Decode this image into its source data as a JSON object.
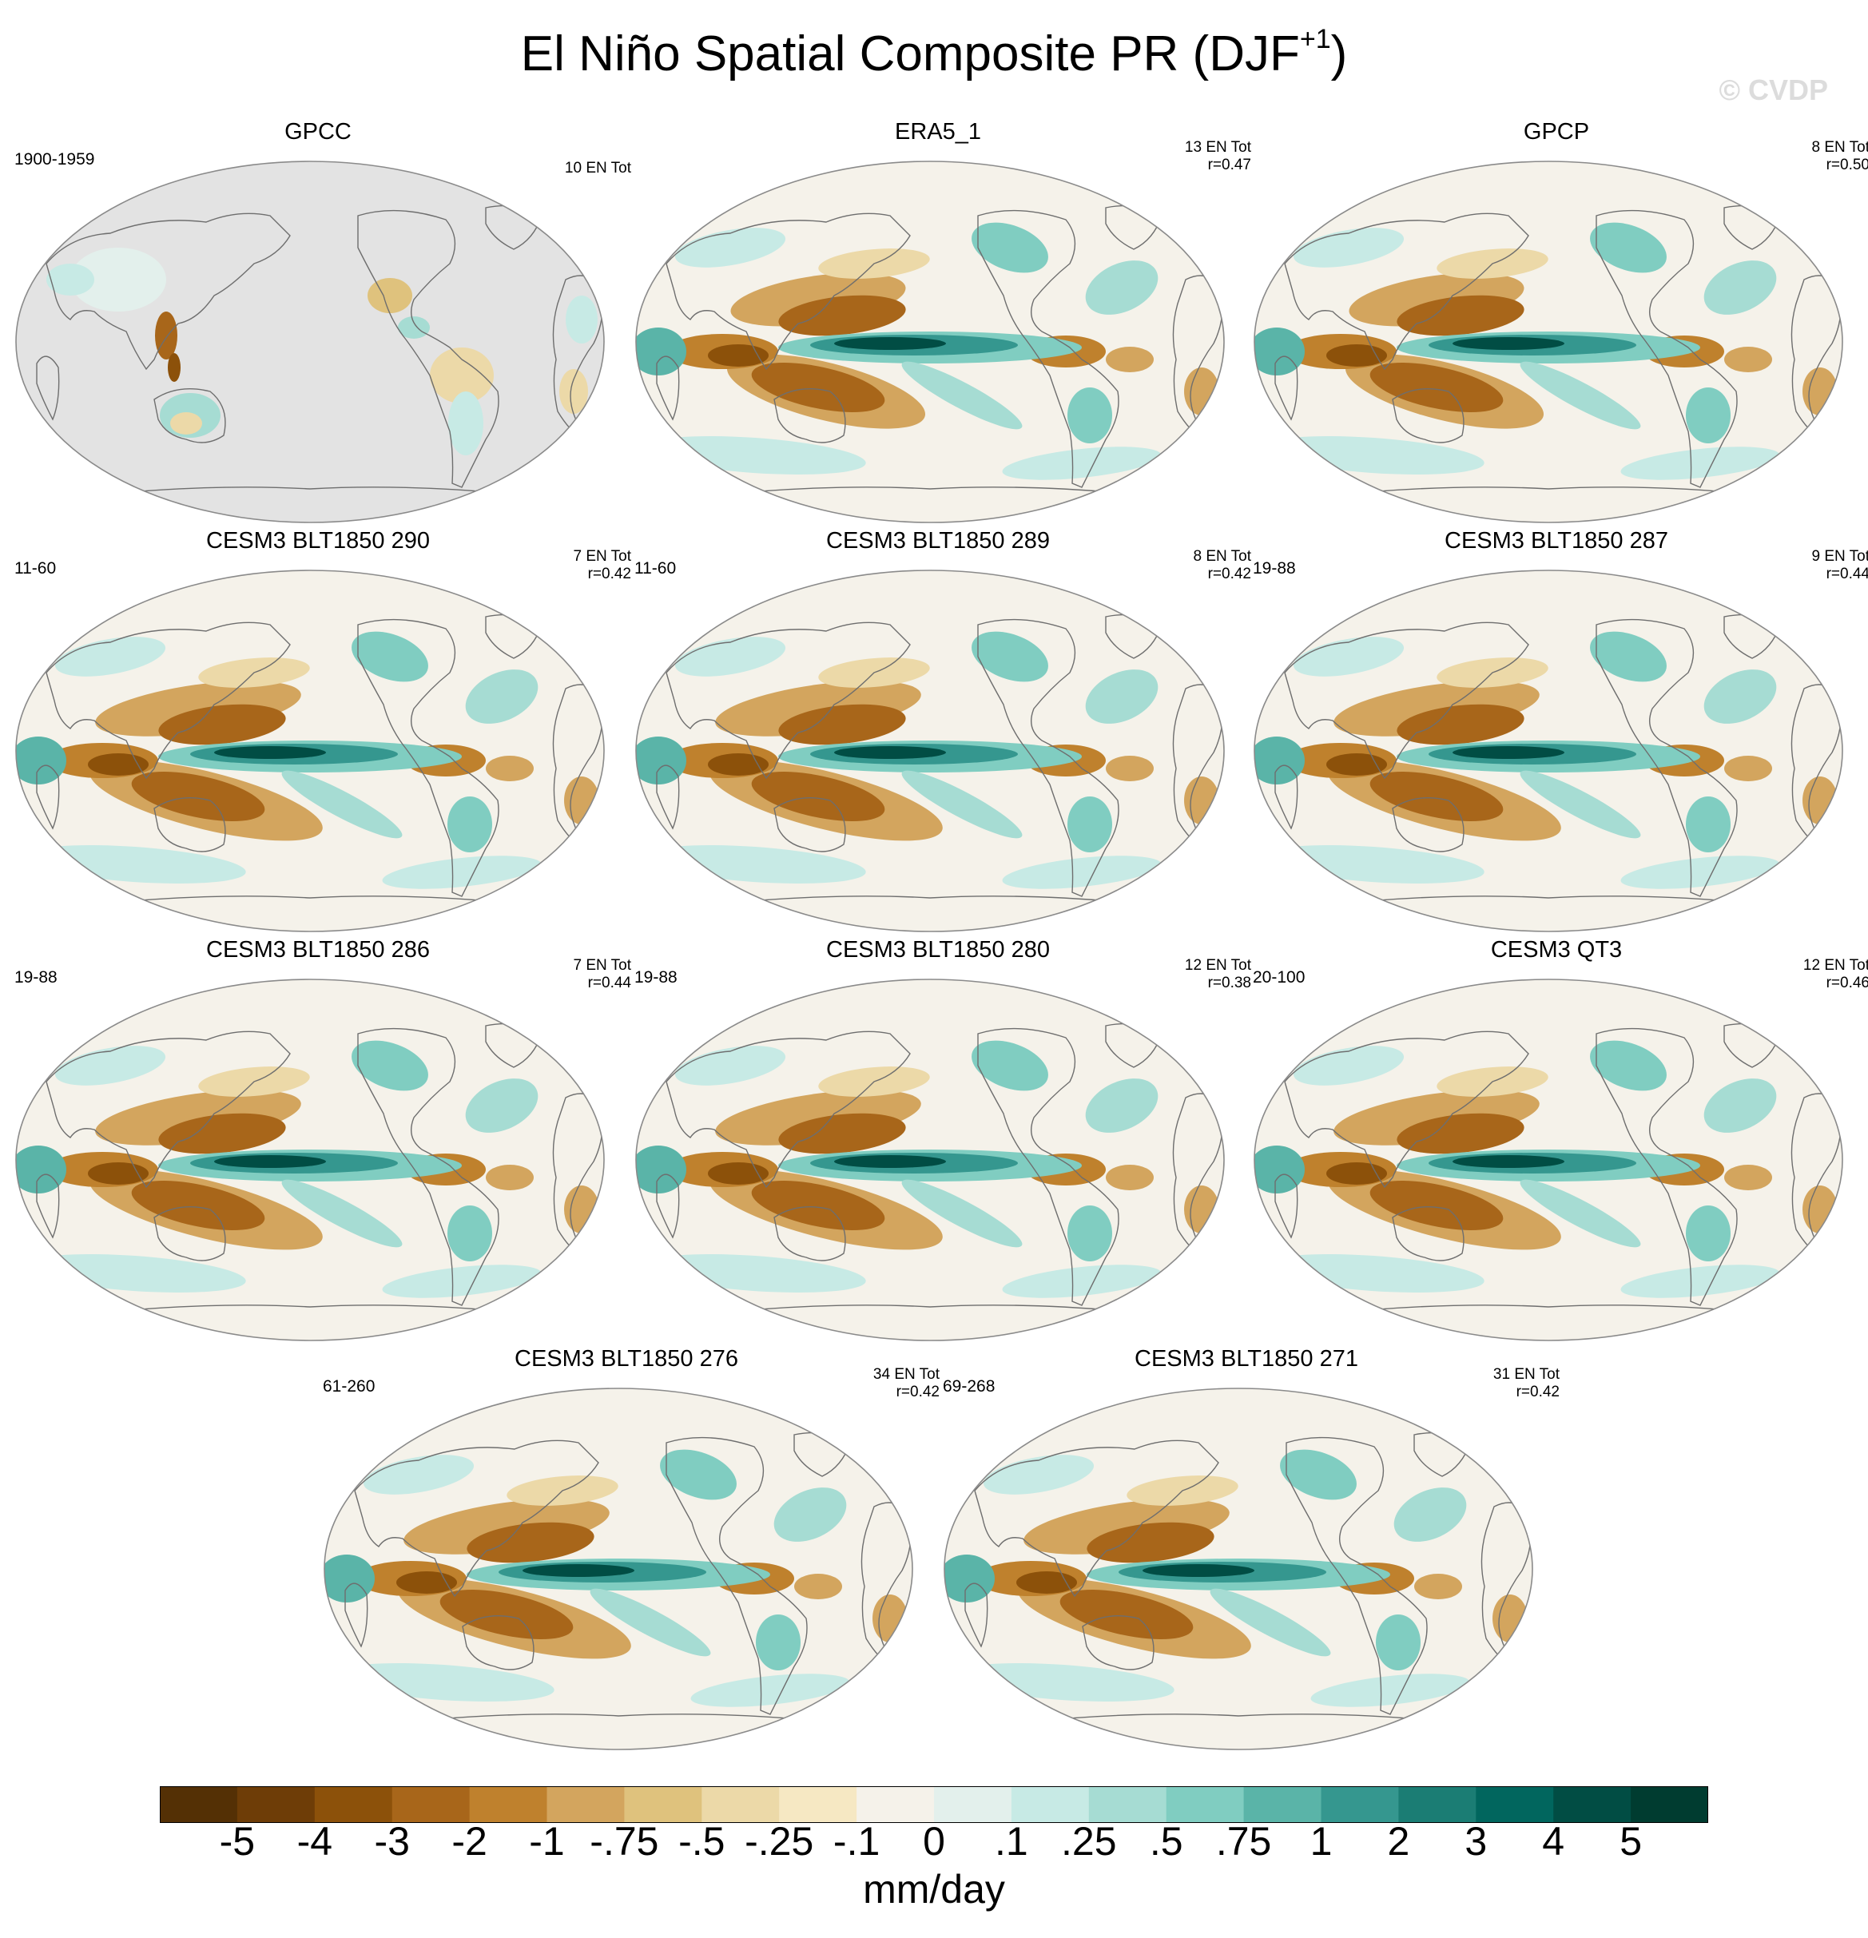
{
  "title": {
    "main": "El Niño Spatial Composite PR (DJF",
    "superscript": "+1",
    "close": ")"
  },
  "watermark": "© CVDP",
  "panels": [
    {
      "title": "GPCC",
      "period": "1900-1959",
      "count": "10 EN Tot",
      "corr": "",
      "style": "gpcc"
    },
    {
      "title": "ERA5_1",
      "period": "",
      "count": "13 EN Tot",
      "corr": "r=0.47",
      "style": "obs"
    },
    {
      "title": "GPCP",
      "period": "",
      "count": "8 EN Tot",
      "corr": "r=0.50",
      "style": "obs"
    },
    {
      "title": "CESM3 BLT1850 290",
      "period": "11-60",
      "count": "7 EN Tot",
      "corr": "r=0.42",
      "style": "model"
    },
    {
      "title": "CESM3 BLT1850 289",
      "period": "11-60",
      "count": "8 EN Tot",
      "corr": "r=0.42",
      "style": "model"
    },
    {
      "title": "CESM3 BLT1850 287",
      "period": "19-88",
      "count": "9 EN Tot",
      "corr": "r=0.44",
      "style": "model"
    },
    {
      "title": "CESM3 BLT1850 286",
      "period": "19-88",
      "count": "7 EN Tot",
      "corr": "r=0.44",
      "style": "model"
    },
    {
      "title": "CESM3 BLT1850 280",
      "period": "19-88",
      "count": "12 EN Tot",
      "corr": "r=0.38",
      "style": "model"
    },
    {
      "title": "CESM3 QT3",
      "period": "20-100",
      "count": "12 EN Tot",
      "corr": "r=0.46",
      "style": "model"
    },
    {
      "title": "CESM3 BLT1850 276",
      "period": "61-260",
      "count": "34 EN Tot",
      "corr": "r=0.42",
      "style": "model"
    },
    {
      "title": "CESM3 BLT1850 271",
      "period": "69-268",
      "count": "31 EN Tot",
      "corr": "r=0.42",
      "style": "model"
    }
  ],
  "colorbar": {
    "units": "mm/day",
    "labels": [
      "-5",
      "-4",
      "-3",
      "-2",
      "-1",
      "-.75",
      "-.5",
      "-.25",
      "-.1",
      "0",
      ".1",
      ".25",
      ".5",
      ".75",
      "1",
      "2",
      "3",
      "4",
      "5"
    ],
    "colors": [
      "#543005",
      "#6e3d07",
      "#8c510a",
      "#a8661a",
      "#bf812d",
      "#d3a55e",
      "#dfc27d",
      "#ecd9a8",
      "#f6e8c3",
      "#f5f2ea",
      "#e3f0ec",
      "#c7eae5",
      "#a6dcd3",
      "#80cdc1",
      "#5ab4a8",
      "#35978f",
      "#1b7d74",
      "#01665e",
      "#014d44",
      "#003c30"
    ]
  },
  "colors": {
    "land_missing": "#e3e3e3",
    "coastline": "#6e6e6e"
  }
}
